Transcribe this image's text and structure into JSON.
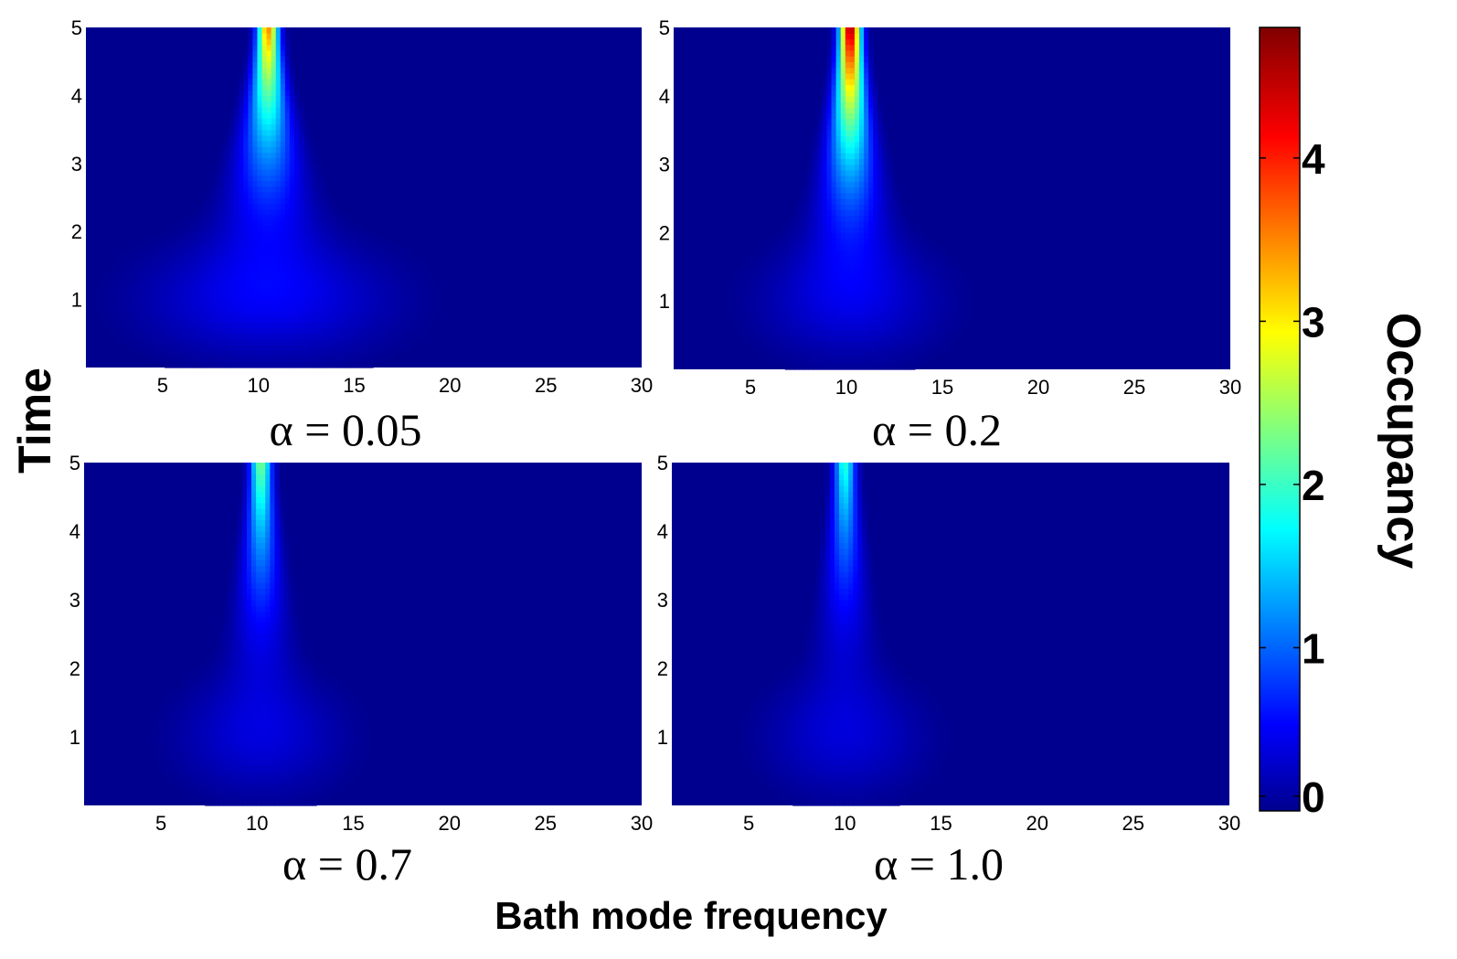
{
  "chart_data": {
    "type": "heatmap",
    "xlabel": "Bath mode frequency",
    "ylabel": "Time",
    "colorbar": {
      "label": "Occupancy",
      "range": [
        0,
        4.8
      ],
      "ticks": [
        "0",
        "1",
        "2",
        "3",
        "4"
      ],
      "colormap": "jet"
    },
    "x_ticks": [
      "5",
      "10",
      "15",
      "20",
      "25",
      "30"
    ],
    "y_ticks": [
      "1",
      "2",
      "3",
      "4",
      "5"
    ],
    "xlim": [
      1,
      30
    ],
    "ylim": [
      0,
      5
    ],
    "panels": [
      {
        "label": "α = 0.05",
        "peak_frequency": 10.5,
        "peak_occupancy": 3.6,
        "peak_time": 5
      },
      {
        "label": "α = 0.2",
        "peak_frequency": 10.2,
        "peak_occupancy": 4.7,
        "peak_time": 5
      },
      {
        "label": "α = 0.7",
        "peak_frequency": 10.2,
        "peak_occupancy": 2.4,
        "peak_time": 5
      },
      {
        "label": "α = 1.0",
        "peak_frequency": 10.0,
        "peak_occupancy": 2.0,
        "peak_time": 5
      }
    ]
  }
}
